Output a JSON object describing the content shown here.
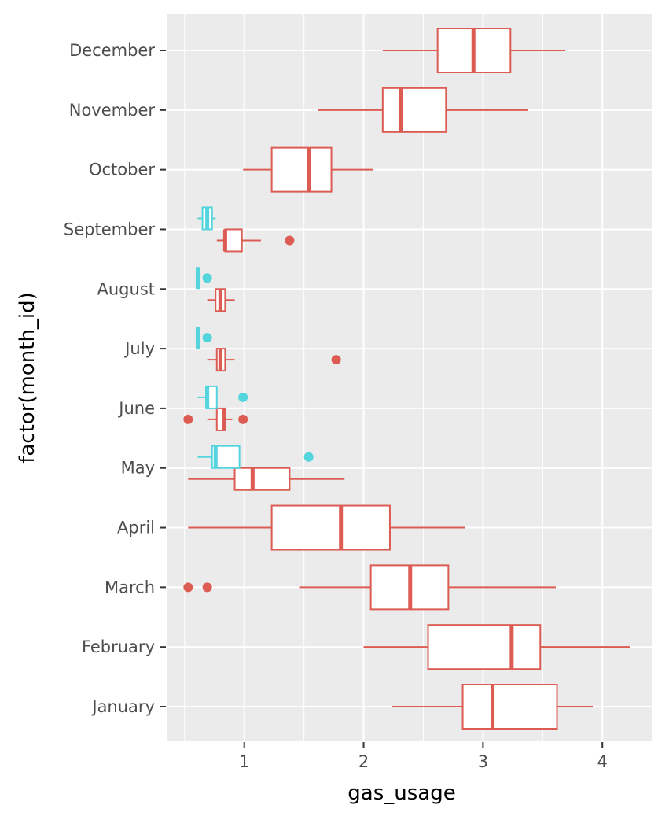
{
  "chart_data": {
    "type": "boxplot",
    "orientation": "horizontal",
    "xlabel": "gas_usage",
    "ylabel": "factor(month_id)",
    "xlim": [
      0.35,
      4.42
    ],
    "xticks": [
      1,
      2,
      3,
      4
    ],
    "grid": true,
    "legend": "none",
    "categories": [
      "January",
      "February",
      "March",
      "April",
      "May",
      "June",
      "July",
      "August",
      "September",
      "October",
      "November",
      "December"
    ],
    "colors": {
      "red": "#dc5c54",
      "cyan": "#54d4dc",
      "panel": "#ebebeb",
      "grid": "#ffffff"
    },
    "series": [
      {
        "color": "red",
        "boxes": [
          {
            "category": "January",
            "whisker_low": 2.24,
            "q1": 2.83,
            "median": 3.08,
            "q3": 3.62,
            "whisker_high": 3.92,
            "outliers": []
          },
          {
            "category": "February",
            "whisker_low": 2.0,
            "q1": 2.54,
            "median": 3.24,
            "q3": 3.48,
            "whisker_high": 4.23,
            "outliers": []
          },
          {
            "category": "March",
            "whisker_low": 1.46,
            "q1": 2.06,
            "median": 2.39,
            "q3": 2.71,
            "whisker_high": 3.61,
            "outliers": [
              0.53,
              0.69
            ]
          },
          {
            "category": "April",
            "whisker_low": 0.53,
            "q1": 1.23,
            "median": 1.81,
            "q3": 2.22,
            "whisker_high": 2.85,
            "outliers": []
          },
          {
            "category": "May",
            "whisker_low": 0.53,
            "q1": 0.92,
            "median": 1.07,
            "q3": 1.38,
            "whisker_high": 1.84,
            "outliers": []
          },
          {
            "category": "June",
            "whisker_low": 0.69,
            "q1": 0.77,
            "median": 0.83,
            "q3": 0.84,
            "whisker_high": 0.9,
            "outliers": [
              0.53,
              0.99
            ]
          },
          {
            "category": "July",
            "whisker_low": 0.69,
            "q1": 0.77,
            "median": 0.8,
            "q3": 0.84,
            "whisker_high": 0.92,
            "outliers": [
              1.77
            ]
          },
          {
            "category": "August",
            "whisker_low": 0.69,
            "q1": 0.76,
            "median": 0.8,
            "q3": 0.84,
            "whisker_high": 0.92,
            "outliers": []
          },
          {
            "category": "September",
            "whisker_low": 0.77,
            "q1": 0.84,
            "median": 0.84,
            "q3": 0.98,
            "whisker_high": 1.14,
            "outliers": [
              1.38
            ]
          },
          {
            "category": "October",
            "whisker_low": 0.99,
            "q1": 1.23,
            "median": 1.54,
            "q3": 1.73,
            "whisker_high": 2.08,
            "outliers": []
          },
          {
            "category": "November",
            "whisker_low": 1.62,
            "q1": 2.16,
            "median": 2.31,
            "q3": 2.69,
            "whisker_high": 3.38,
            "outliers": []
          },
          {
            "category": "December",
            "whisker_low": 2.16,
            "q1": 2.62,
            "median": 2.92,
            "q3": 3.23,
            "whisker_high": 3.69,
            "outliers": []
          }
        ]
      },
      {
        "color": "cyan",
        "boxes": [
          {
            "category": "May",
            "whisker_low": 0.61,
            "q1": 0.73,
            "median": 0.76,
            "q3": 0.96,
            "whisker_high": 0.96,
            "outliers": [
              1.54
            ]
          },
          {
            "category": "June",
            "whisker_low": 0.61,
            "q1": 0.68,
            "median": 0.69,
            "q3": 0.77,
            "whisker_high": 0.77,
            "outliers": [
              0.99
            ]
          },
          {
            "category": "July",
            "whisker_low": 0.61,
            "q1": 0.61,
            "median": 0.61,
            "q3": 0.61,
            "whisker_high": 0.61,
            "outliers": [
              0.69
            ]
          },
          {
            "category": "August",
            "whisker_low": 0.61,
            "q1": 0.61,
            "median": 0.61,
            "q3": 0.61,
            "whisker_high": 0.61,
            "outliers": [
              0.69
            ]
          },
          {
            "category": "September",
            "whisker_low": 0.61,
            "q1": 0.65,
            "median": 0.69,
            "q3": 0.73,
            "whisker_high": 0.76,
            "outliers": []
          }
        ]
      }
    ]
  }
}
